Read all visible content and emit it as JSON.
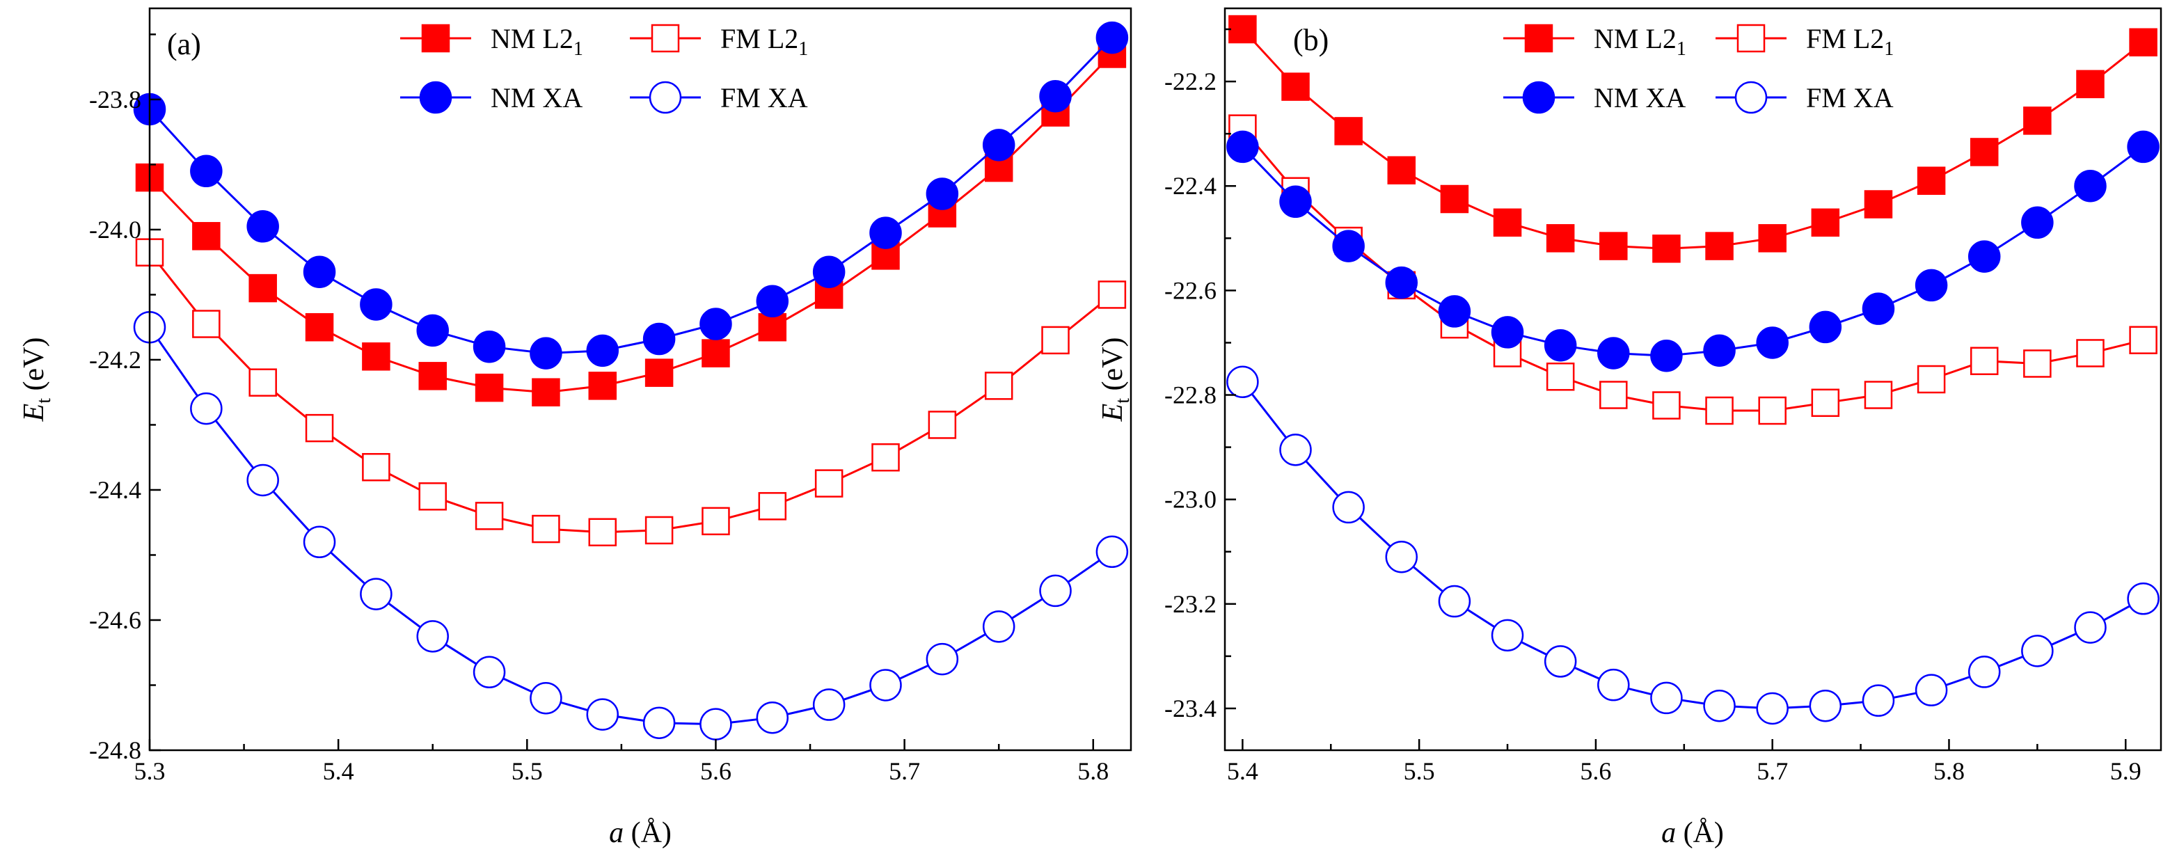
{
  "chart_data": [
    {
      "type": "line",
      "panel_label": "(a)",
      "xlabel": {
        "italic": "a",
        "rest": " (Å)"
      },
      "ylabel": {
        "main": "E",
        "sub": "t",
        "rest": " (eV)"
      },
      "xlim": [
        5.3,
        5.82
      ],
      "ylim": [
        -24.8,
        -23.66
      ],
      "xticks": [
        5.3,
        5.4,
        5.5,
        5.6,
        5.7,
        5.8
      ],
      "xtick_labels": [
        "5.3",
        "5.4",
        "5.5",
        "5.6",
        "5.7",
        "5.8"
      ],
      "yticks": [
        -24.8,
        -24.6,
        -24.4,
        -24.2,
        -24.0,
        -23.8
      ],
      "ytick_labels": [
        "-24.8",
        "-24.6",
        "-24.4",
        "-24.2",
        "-24.0",
        "-23.8"
      ],
      "x": [
        5.3,
        5.33,
        5.36,
        5.39,
        5.42,
        5.45,
        5.48,
        5.51,
        5.54,
        5.57,
        5.6,
        5.63,
        5.66,
        5.69,
        5.72,
        5.75,
        5.78,
        5.81
      ],
      "legend_position": "top",
      "series": [
        {
          "key": "nm_l21",
          "name": {
            "main": "NM L2",
            "sub": "1"
          },
          "color": "#ff0000",
          "marker": "square",
          "filled": true,
          "values": [
            -23.92,
            -24.01,
            -24.09,
            -24.15,
            -24.195,
            -24.225,
            -24.243,
            -24.25,
            -24.24,
            -24.22,
            -24.19,
            -24.15,
            -24.1,
            -24.04,
            -23.975,
            -23.905,
            -23.82,
            -23.73
          ]
        },
        {
          "key": "fm_l21",
          "name": {
            "main": "FM L2",
            "sub": "1"
          },
          "color": "#ff0000",
          "marker": "square",
          "filled": false,
          "values": [
            -24.035,
            -24.145,
            -24.235,
            -24.305,
            -24.365,
            -24.41,
            -24.44,
            -24.46,
            -24.465,
            -24.462,
            -24.448,
            -24.425,
            -24.39,
            -24.35,
            -24.3,
            -24.24,
            -24.17,
            -24.1
          ]
        },
        {
          "key": "nm_xa",
          "name": {
            "main": "NM XA",
            "sub": ""
          },
          "color": "#0000ff",
          "marker": "circle",
          "filled": true,
          "values": [
            -23.815,
            -23.91,
            -23.995,
            -24.065,
            -24.115,
            -24.155,
            -24.18,
            -24.19,
            -24.186,
            -24.168,
            -24.145,
            -24.11,
            -24.065,
            -24.005,
            -23.945,
            -23.87,
            -23.795,
            -23.705
          ]
        },
        {
          "key": "fm_xa",
          "name": {
            "main": "FM XA",
            "sub": ""
          },
          "color": "#0000ff",
          "marker": "circle",
          "filled": false,
          "values": [
            -24.15,
            -24.275,
            -24.385,
            -24.48,
            -24.56,
            -24.625,
            -24.68,
            -24.72,
            -24.745,
            -24.758,
            -24.76,
            -24.75,
            -24.73,
            -24.7,
            -24.66,
            -24.61,
            -24.555,
            -24.495
          ]
        }
      ]
    },
    {
      "type": "line",
      "panel_label": "(b)",
      "xlabel": {
        "italic": "a",
        "rest": " (Å)"
      },
      "ylabel": {
        "main": "E",
        "sub": "t",
        "rest": " (eV)"
      },
      "xlim": [
        5.39,
        5.92
      ],
      "ylim": [
        -23.48,
        -22.06
      ],
      "xticks": [
        5.4,
        5.5,
        5.6,
        5.7,
        5.8,
        5.9
      ],
      "xtick_labels": [
        "5.4",
        "5.5",
        "5.6",
        "5.7",
        "5.8",
        "5.9"
      ],
      "yticks": [
        -23.4,
        -23.2,
        -23.0,
        -22.8,
        -22.6,
        -22.4,
        -22.2
      ],
      "ytick_labels": [
        "-23.4",
        "-23.2",
        "-23.0",
        "-22.8",
        "-22.6",
        "-22.4",
        "-22.2"
      ],
      "x": [
        5.4,
        5.43,
        5.46,
        5.49,
        5.52,
        5.55,
        5.58,
        5.61,
        5.64,
        5.67,
        5.7,
        5.73,
        5.76,
        5.79,
        5.82,
        5.85,
        5.88,
        5.91
      ],
      "legend_position": "top",
      "series": [
        {
          "key": "nm_l21",
          "name": {
            "main": "NM L2",
            "sub": "1"
          },
          "color": "#ff0000",
          "marker": "square",
          "filled": true,
          "values": [
            -22.1,
            -22.21,
            -22.295,
            -22.37,
            -22.425,
            -22.47,
            -22.5,
            -22.515,
            -22.52,
            -22.515,
            -22.5,
            -22.47,
            -22.435,
            -22.39,
            -22.335,
            -22.275,
            -22.205,
            -22.125
          ]
        },
        {
          "key": "fm_l21",
          "name": {
            "main": "FM L2",
            "sub": "1"
          },
          "color": "#ff0000",
          "marker": "square",
          "filled": false,
          "values": [
            -22.29,
            -22.41,
            -22.505,
            -22.59,
            -22.665,
            -22.72,
            -22.765,
            -22.8,
            -22.82,
            -22.83,
            -22.83,
            -22.815,
            -22.8,
            -22.77,
            -22.735,
            -22.74,
            -22.72,
            -22.695
          ]
        },
        {
          "key": "nm_xa",
          "name": {
            "main": "NM XA",
            "sub": ""
          },
          "color": "#0000ff",
          "marker": "circle",
          "filled": true,
          "values": [
            -22.325,
            -22.43,
            -22.515,
            -22.585,
            -22.64,
            -22.68,
            -22.705,
            -22.72,
            -22.725,
            -22.715,
            -22.7,
            -22.67,
            -22.635,
            -22.59,
            -22.535,
            -22.47,
            -22.4,
            -22.325
          ]
        },
        {
          "key": "fm_xa",
          "name": {
            "main": "FM XA",
            "sub": ""
          },
          "color": "#0000ff",
          "marker": "circle",
          "filled": false,
          "values": [
            -22.775,
            -22.905,
            -23.015,
            -23.11,
            -23.195,
            -23.26,
            -23.31,
            -23.355,
            -23.38,
            -23.395,
            -23.4,
            -23.395,
            -23.385,
            -23.365,
            -23.33,
            -23.29,
            -23.245,
            -23.19
          ]
        }
      ]
    }
  ]
}
